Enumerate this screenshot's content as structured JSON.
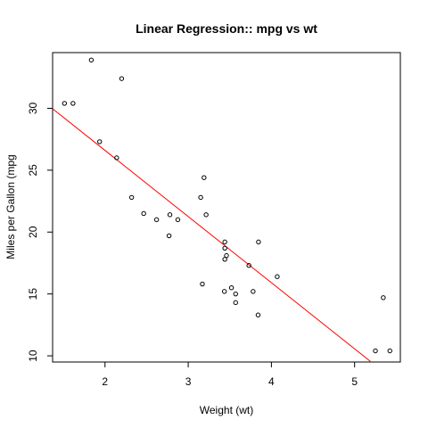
{
  "chart_data": {
    "type": "scatter",
    "title": "Linear Regression:: mpg vs wt",
    "xlabel": "Weight (wt)",
    "ylabel": "Miles per Gallon (mpg",
    "xlim": [
      1.37,
      5.55
    ],
    "ylim": [
      9.5,
      34.5
    ],
    "xticks": [
      2,
      3,
      4,
      5
    ],
    "yticks": [
      10,
      15,
      20,
      25,
      30
    ],
    "grid": false,
    "point_color": "#000000",
    "line_color": "#ff0000",
    "regression_line": {
      "intercept": 37.285,
      "slope": -5.344
    },
    "points": [
      {
        "x": 2.62,
        "y": 21.0
      },
      {
        "x": 2.875,
        "y": 21.0
      },
      {
        "x": 2.32,
        "y": 22.8
      },
      {
        "x": 3.215,
        "y": 21.4
      },
      {
        "x": 3.44,
        "y": 18.7
      },
      {
        "x": 3.46,
        "y": 18.1
      },
      {
        "x": 3.57,
        "y": 14.3
      },
      {
        "x": 3.19,
        "y": 24.4
      },
      {
        "x": 3.15,
        "y": 22.8
      },
      {
        "x": 3.44,
        "y": 19.2
      },
      {
        "x": 3.44,
        "y": 17.8
      },
      {
        "x": 4.07,
        "y": 16.4
      },
      {
        "x": 3.73,
        "y": 17.3
      },
      {
        "x": 3.78,
        "y": 15.2
      },
      {
        "x": 5.25,
        "y": 10.4
      },
      {
        "x": 5.424,
        "y": 10.4
      },
      {
        "x": 5.345,
        "y": 14.7
      },
      {
        "x": 2.2,
        "y": 32.4
      },
      {
        "x": 1.615,
        "y": 30.4
      },
      {
        "x": 1.835,
        "y": 33.9
      },
      {
        "x": 2.465,
        "y": 21.5
      },
      {
        "x": 3.52,
        "y": 15.5
      },
      {
        "x": 3.435,
        "y": 15.2
      },
      {
        "x": 3.84,
        "y": 13.3
      },
      {
        "x": 3.845,
        "y": 19.2
      },
      {
        "x": 1.935,
        "y": 27.3
      },
      {
        "x": 2.14,
        "y": 26.0
      },
      {
        "x": 1.513,
        "y": 30.4
      },
      {
        "x": 3.17,
        "y": 15.8
      },
      {
        "x": 2.77,
        "y": 19.7
      },
      {
        "x": 3.57,
        "y": 15.0
      },
      {
        "x": 2.78,
        "y": 21.4
      }
    ]
  }
}
